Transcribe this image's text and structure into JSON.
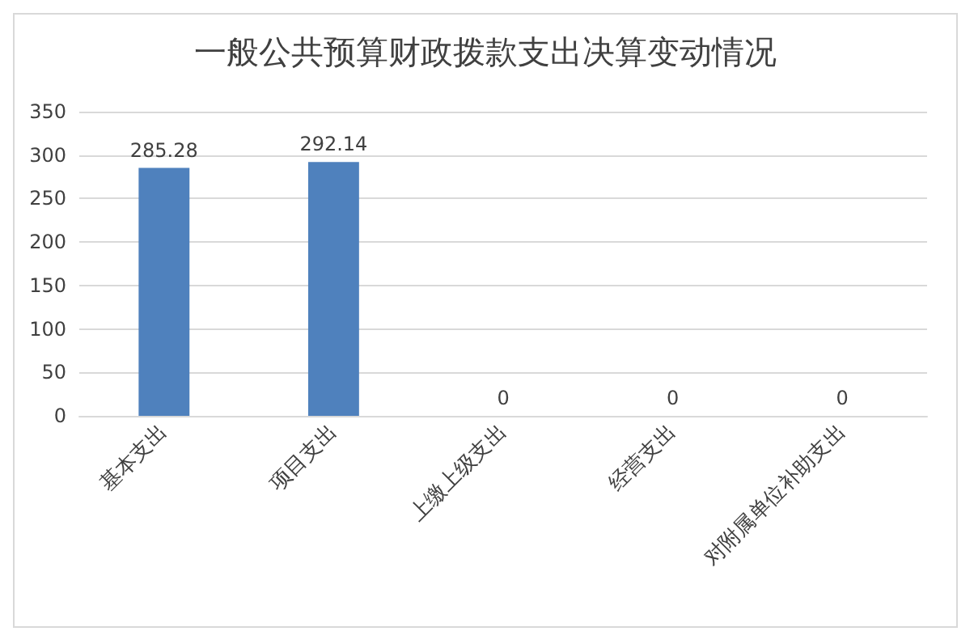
{
  "chart_data": {
    "type": "bar",
    "title": "一般公共预算财政拨款支出决算变动情况",
    "categories": [
      "基本支出",
      "项目支出",
      "上缴上级支出",
      "经营支出",
      "对附属单位补助支出"
    ],
    "values": [
      285.28,
      292.14,
      0,
      0,
      0
    ],
    "color": "#4f81bd",
    "ylim": [
      0,
      350
    ],
    "yticks": [
      0,
      50,
      100,
      150,
      200,
      250,
      300,
      350
    ],
    "grid": "y",
    "data_labels": true
  }
}
